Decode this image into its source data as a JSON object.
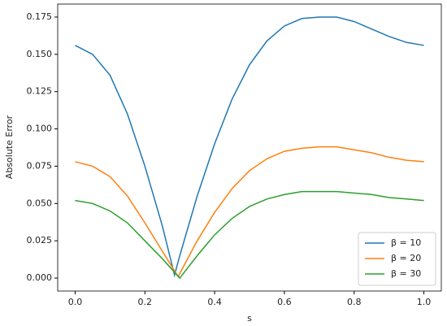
{
  "chart_data": {
    "type": "line",
    "xlabel": "s",
    "ylabel": "Absolute Error",
    "xlim": [
      -0.05,
      1.05
    ],
    "ylim": [
      -0.0087,
      0.1837
    ],
    "xticks": [
      {
        "value": 0,
        "label": "0.0"
      },
      {
        "value": 0.2,
        "label": "0.2"
      },
      {
        "value": 0.4,
        "label": "0.4"
      },
      {
        "value": 0.6,
        "label": "0.6"
      },
      {
        "value": 0.8,
        "label": "0.8"
      },
      {
        "value": 1,
        "label": "1.0"
      }
    ],
    "yticks": [
      {
        "value": 0,
        "label": "0.000"
      },
      {
        "value": 0.025,
        "label": "0.025"
      },
      {
        "value": 0.05,
        "label": "0.050"
      },
      {
        "value": 0.075,
        "label": "0.075"
      },
      {
        "value": 0.1,
        "label": "0.100"
      },
      {
        "value": 0.125,
        "label": "0.125"
      },
      {
        "value": 0.15,
        "label": "0.150"
      },
      {
        "value": 0.175,
        "label": "0.175"
      }
    ],
    "grid": false,
    "legend": "lower right",
    "series": [
      {
        "name": "β = 10",
        "color": "#1f77b4",
        "x": [
          0,
          0.05,
          0.1,
          0.15,
          0.2,
          0.25,
          0.285,
          0.3,
          0.35,
          0.4,
          0.45,
          0.5,
          0.55,
          0.6,
          0.65,
          0.7,
          0.75,
          0.8,
          0.85,
          0.9,
          0.95,
          1
        ],
        "values": [
          0.156,
          0.15,
          0.136,
          0.11,
          0.075,
          0.035,
          0.002,
          0.015,
          0.055,
          0.09,
          0.12,
          0.143,
          0.159,
          0.169,
          0.174,
          0.175,
          0.175,
          0.172,
          0.167,
          0.162,
          0.158,
          0.156
        ]
      },
      {
        "name": "β = 20",
        "color": "#ff7f0e",
        "x": [
          0,
          0.05,
          0.1,
          0.15,
          0.2,
          0.25,
          0.295,
          0.3,
          0.35,
          0.4,
          0.45,
          0.5,
          0.55,
          0.6,
          0.65,
          0.7,
          0.75,
          0.8,
          0.85,
          0.9,
          0.95,
          1
        ],
        "values": [
          0.078,
          0.075,
          0.068,
          0.055,
          0.037,
          0.018,
          0.001,
          0.003,
          0.025,
          0.044,
          0.06,
          0.072,
          0.08,
          0.085,
          0.087,
          0.088,
          0.088,
          0.086,
          0.084,
          0.081,
          0.079,
          0.078
        ]
      },
      {
        "name": "β = 30",
        "color": "#2ca02c",
        "x": [
          0,
          0.05,
          0.1,
          0.15,
          0.2,
          0.25,
          0.3,
          0.35,
          0.4,
          0.45,
          0.5,
          0.55,
          0.6,
          0.65,
          0.7,
          0.75,
          0.8,
          0.85,
          0.9,
          0.95,
          1
        ],
        "values": [
          0.052,
          0.05,
          0.045,
          0.037,
          0.025,
          0.013,
          0.0,
          0.015,
          0.029,
          0.04,
          0.048,
          0.053,
          0.056,
          0.058,
          0.058,
          0.058,
          0.057,
          0.056,
          0.054,
          0.053,
          0.052
        ]
      }
    ]
  }
}
